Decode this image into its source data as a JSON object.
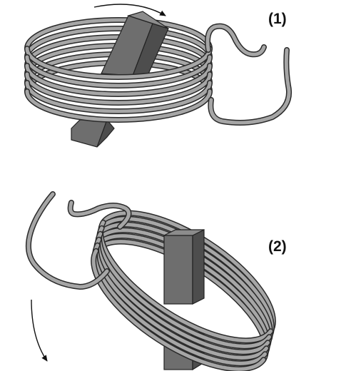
{
  "figure": {
    "panels": [
      {
        "label": "(1)",
        "arrow_direction": "clockwise-over-top"
      },
      {
        "label": "(2)",
        "arrow_direction": "downward-swing"
      }
    ],
    "colors": {
      "wire_fill": "#a6a6a6",
      "wire_outline": "#2a2a2a",
      "magnet_front": "#6e6e6e",
      "magnet_side": "#4d4d4d",
      "magnet_top": "#8c8c8c",
      "arrow": "#111111"
    },
    "icons": [
      "coil-of-wire",
      "bar-magnet",
      "rotation-arrow"
    ]
  }
}
